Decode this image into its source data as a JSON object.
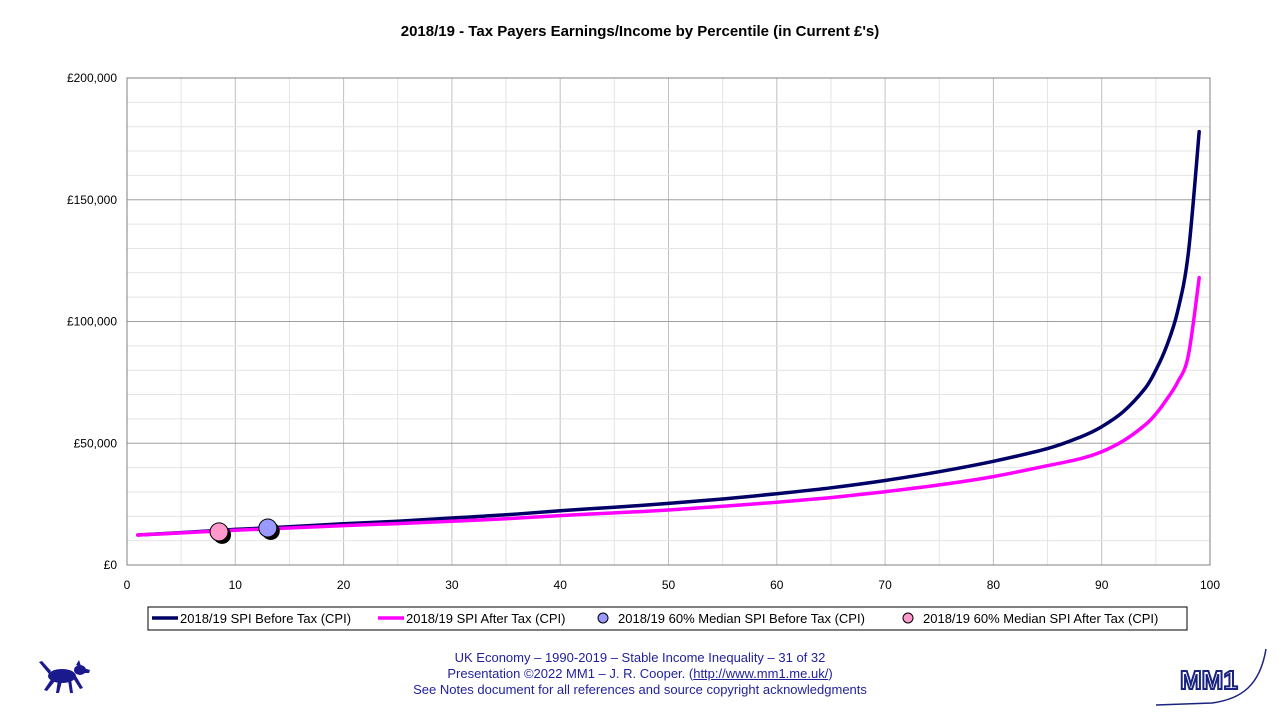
{
  "chart_data": {
    "type": "line",
    "title": "2018/19 - Tax Payers Earnings/Income by Percentile (in Current £'s)",
    "xlabel": "",
    "ylabel": "",
    "xlim": [
      0,
      100
    ],
    "ylim": [
      0,
      200000
    ],
    "x_ticks": [
      0,
      10,
      20,
      30,
      40,
      50,
      60,
      70,
      80,
      90,
      100
    ],
    "y_ticks": [
      0,
      50000,
      100000,
      150000,
      200000
    ],
    "y_tick_labels": [
      "£0",
      "£50,000",
      "£100,000",
      "£150,000",
      "£200,000"
    ],
    "grid": true,
    "legend_position": "bottom",
    "series": [
      {
        "name": "2018/19 SPI  Before Tax (CPI)",
        "kind": "line",
        "color": "#000066",
        "x": [
          1,
          5,
          10,
          15,
          20,
          25,
          30,
          35,
          40,
          45,
          50,
          55,
          60,
          65,
          70,
          75,
          80,
          85,
          88,
          90,
          92,
          94,
          95,
          96,
          97,
          98,
          99
        ],
        "y": [
          12300,
          13300,
          14600,
          15700,
          16900,
          18000,
          19300,
          20600,
          22300,
          23700,
          25300,
          27100,
          29300,
          31700,
          34700,
          38300,
          42600,
          47800,
          52500,
          56800,
          63000,
          72500,
          80000,
          90000,
          104000,
          128000,
          178000
        ]
      },
      {
        "name": "2018/19 SPI After Tax (CPI)",
        "kind": "line",
        "color": "#ff00ff",
        "x": [
          1,
          5,
          10,
          15,
          20,
          25,
          30,
          35,
          40,
          45,
          50,
          55,
          60,
          65,
          70,
          75,
          80,
          85,
          88,
          90,
          92,
          94,
          95,
          96,
          97,
          98,
          99
        ],
        "y": [
          12300,
          13200,
          14300,
          15200,
          16200,
          17000,
          18000,
          19000,
          20300,
          21400,
          22600,
          24100,
          25800,
          27700,
          30100,
          32900,
          36300,
          40800,
          43600,
          46500,
          51000,
          57500,
          62000,
          68000,
          75000,
          86000,
          118000
        ]
      },
      {
        "name": "2018/19 60% Median SPI Before Tax (CPI)",
        "kind": "marker",
        "color": "#9999ff",
        "x": [
          13
        ],
        "y": [
          15200
        ]
      },
      {
        "name": "2018/19 60% Median SPI After Tax (CPI)",
        "kind": "marker",
        "color": "#ff99cc",
        "x": [
          8.5
        ],
        "y": [
          13600
        ]
      }
    ]
  },
  "footer": {
    "line1": "UK Economy – 1990-2019 – Stable Income Inequality – 31 of 32",
    "line2_prefix": "Presentation ©2022 MM1 – J. R. Cooper. (",
    "line2_link": "http://www.mm1.me.uk/",
    "line2_suffix": ")",
    "line3": "See Notes document for all references and source copyright acknowledgments"
  },
  "logo": {
    "text": "MM1",
    "color": "#1a237e"
  }
}
